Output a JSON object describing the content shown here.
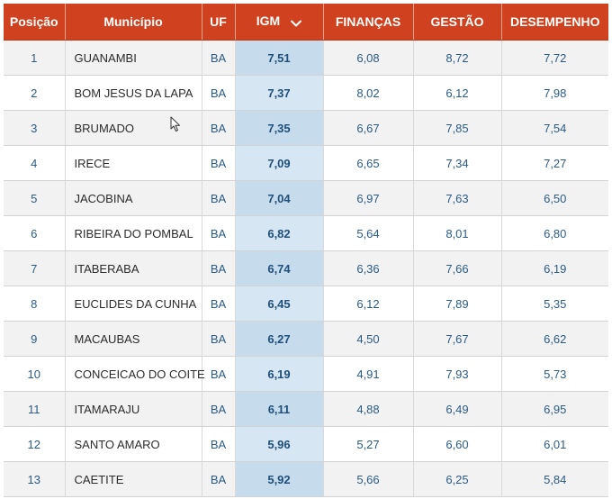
{
  "table": {
    "headers": [
      "Posição",
      "Município",
      "UF",
      "IGM",
      "FINANÇAS",
      "GESTÃO",
      "DESEMPENHO"
    ],
    "rows": [
      {
        "pos": "1",
        "municipio": "GUANAMBI",
        "uf": "BA",
        "igm": "7,51",
        "financas": "6,08",
        "gestao": "8,72",
        "desempenho": "7,72"
      },
      {
        "pos": "2",
        "municipio": "BOM JESUS DA LAPA",
        "uf": "BA",
        "igm": "7,37",
        "financas": "8,02",
        "gestao": "6,12",
        "desempenho": "7,98"
      },
      {
        "pos": "3",
        "municipio": "BRUMADO",
        "uf": "BA",
        "igm": "7,35",
        "financas": "6,67",
        "gestao": "7,85",
        "desempenho": "7,54"
      },
      {
        "pos": "4",
        "municipio": "IRECE",
        "uf": "BA",
        "igm": "7,09",
        "financas": "6,65",
        "gestao": "7,34",
        "desempenho": "7,27"
      },
      {
        "pos": "5",
        "municipio": "JACOBINA",
        "uf": "BA",
        "igm": "7,04",
        "financas": "6,97",
        "gestao": "7,63",
        "desempenho": "6,50"
      },
      {
        "pos": "6",
        "municipio": "RIBEIRA DO POMBAL",
        "uf": "BA",
        "igm": "6,82",
        "financas": "5,64",
        "gestao": "8,01",
        "desempenho": "6,80"
      },
      {
        "pos": "7",
        "municipio": "ITABERABA",
        "uf": "BA",
        "igm": "6,74",
        "financas": "6,36",
        "gestao": "7,66",
        "desempenho": "6,19"
      },
      {
        "pos": "8",
        "municipio": "EUCLIDES DA CUNHA",
        "uf": "BA",
        "igm": "6,45",
        "financas": "6,12",
        "gestao": "7,89",
        "desempenho": "5,35"
      },
      {
        "pos": "9",
        "municipio": "MACAUBAS",
        "uf": "BA",
        "igm": "6,27",
        "financas": "4,50",
        "gestao": "7,67",
        "desempenho": "6,62"
      },
      {
        "pos": "10",
        "municipio": "CONCEICAO DO COITE",
        "uf": "BA",
        "igm": "6,19",
        "financas": "4,91",
        "gestao": "7,93",
        "desempenho": "5,73"
      },
      {
        "pos": "11",
        "municipio": "ITAMARAJU",
        "uf": "BA",
        "igm": "6,11",
        "financas": "4,88",
        "gestao": "6,49",
        "desempenho": "6,95"
      },
      {
        "pos": "12",
        "municipio": "SANTO AMARO",
        "uf": "BA",
        "igm": "5,96",
        "financas": "5,27",
        "gestao": "6,60",
        "desempenho": "6,01"
      },
      {
        "pos": "13",
        "municipio": "CAETITE",
        "uf": "BA",
        "igm": "5,92",
        "financas": "5,66",
        "gestao": "6,25",
        "desempenho": "5,84"
      }
    ]
  },
  "sort": {
    "icon": "chevron-down-icon"
  },
  "colors": {
    "header_bg": "#d0421f",
    "header_text": "#ffffff",
    "igm_col": "#d6e6f3",
    "link_text": "#2a5b86"
  }
}
